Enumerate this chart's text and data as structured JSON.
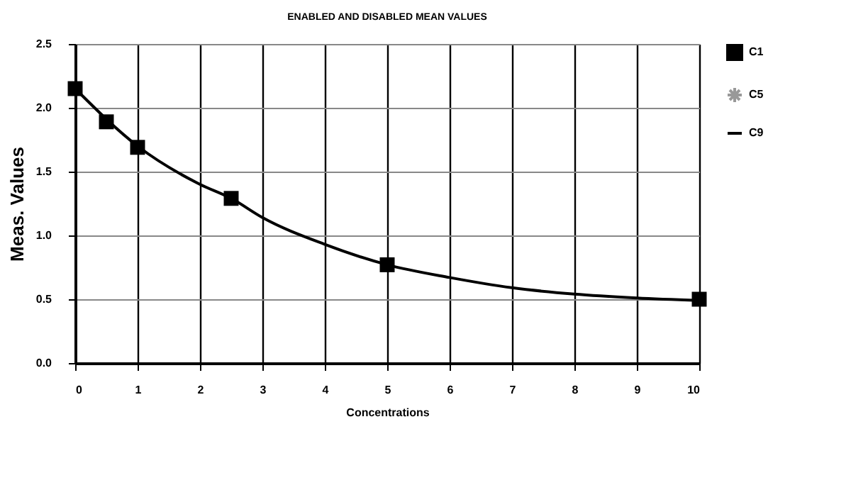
{
  "chart_data": {
    "type": "scatter",
    "title": "ENABLED AND DISABLED MEAN VALUES",
    "xlabel": "Concentrations",
    "ylabel": "Meas. Values",
    "xlim": [
      0,
      10
    ],
    "xticks": [
      0,
      1,
      2,
      3,
      4,
      5,
      6,
      7,
      8,
      9,
      10
    ],
    "ylim": [
      0,
      2.5
    ],
    "yticks": [
      {
        "value": 0,
        "label": "0.0"
      },
      {
        "value": 0.5,
        "label": "0.5"
      },
      {
        "value": 1,
        "label": "1.0"
      },
      {
        "value": 1.5,
        "label": "1.5"
      },
      {
        "value": 2,
        "label": "2.0"
      },
      {
        "value": 2.5,
        "label": "2.5"
      }
    ],
    "grid": true,
    "legend": "right",
    "series": [
      {
        "name": "C1",
        "color": "#000000",
        "marker": "square",
        "x": [
          0,
          0.5,
          1,
          2.5,
          5,
          10
        ],
        "values": [
          2.15,
          1.89,
          1.69,
          1.29,
          0.77,
          0.5
        ]
      },
      {
        "name": "C5",
        "color": "#999999",
        "type": "scatter",
        "marker": "star"
      },
      {
        "name": "C9",
        "color": "#000000",
        "type": "line",
        "marker": "none",
        "line_style": "solid",
        "x": [
          0,
          1,
          2,
          2.5,
          3,
          4,
          5,
          6,
          7,
          8,
          9,
          10
        ],
        "values": [
          2.15,
          1.7,
          1.4,
          1.29,
          1.14,
          0.93,
          0.77,
          0.67,
          0.59,
          0.54,
          0.51,
          0.49
        ]
      }
    ]
  }
}
